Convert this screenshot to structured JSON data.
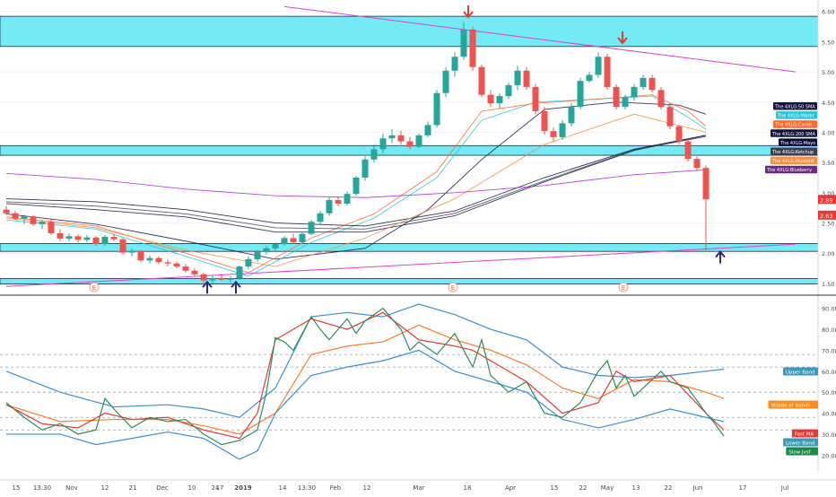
{
  "chart_data": [
    {
      "type": "candlestick",
      "panel": "price",
      "y_ticks": [
        1.5,
        2.0,
        2.5,
        3.0,
        3.5,
        4.0,
        4.5,
        5.0,
        5.5,
        6.0
      ],
      "y_tick_labels": [
        "1.50",
        "2.00",
        "2.50",
        "3.00",
        "3.50",
        "4.00",
        "4.50",
        "5.00",
        "5.50",
        "6.00"
      ],
      "ylim": [
        1.38,
        6.1
      ],
      "x_tick_labels": [
        "15",
        "13:30",
        "Nov",
        "12",
        "21",
        "Dec",
        "10",
        "17",
        "24",
        "2019",
        "14",
        "13:30",
        "Feb",
        "12",
        "Mar",
        "18",
        "Apr",
        "15",
        "22",
        "May",
        "13",
        "22",
        "Jun",
        "17",
        "Jul"
      ],
      "zones": [
        [
          5.42,
          5.92
        ],
        [
          3.62,
          3.78
        ],
        [
          2.03,
          2.16
        ],
        [
          1.49,
          1.58
        ]
      ],
      "series": [
        {
          "name": "The 4XLG:50 SMA",
          "color": "#13133f",
          "x": [
            0,
            10,
            20,
            30,
            40,
            47,
            53,
            60,
            68,
            75,
            78
          ],
          "y": [
            2.65,
            2.48,
            2.2,
            1.9,
            2.08,
            2.72,
            3.55,
            4.38,
            4.5,
            4.45,
            4.3
          ]
        },
        {
          "name": "The 4XLG:Water",
          "color": "#26c6da",
          "x": [
            0,
            10,
            20,
            27,
            34,
            41,
            48,
            53,
            59,
            66,
            72,
            76,
            78
          ],
          "y": [
            2.55,
            2.4,
            1.95,
            1.62,
            2.18,
            2.58,
            3.25,
            4.2,
            4.5,
            4.55,
            4.6,
            4.25,
            4.05
          ]
        },
        {
          "name": "The 4XLG:Carrot",
          "color": "#ff6a2b",
          "x": [
            0,
            10,
            20,
            27,
            34,
            41,
            48,
            53,
            59,
            66,
            72,
            76,
            78
          ],
          "y": [
            2.6,
            2.45,
            2.0,
            1.68,
            2.25,
            2.65,
            3.35,
            4.35,
            4.48,
            4.55,
            4.62,
            4.35,
            4.1
          ]
        },
        {
          "name": "The 4XLG:200 SMA",
          "color": "#13133f",
          "x": [
            0,
            10,
            20,
            30,
            40,
            50,
            60,
            70,
            78
          ],
          "y": [
            2.82,
            2.72,
            2.6,
            2.35,
            2.35,
            2.62,
            3.18,
            3.7,
            3.95
          ]
        },
        {
          "name": "The 4XLG:Mayo",
          "color": "#0b0b3a",
          "x": [
            0,
            10,
            20,
            30,
            40,
            50,
            60,
            70,
            78
          ],
          "y": [
            2.9,
            2.85,
            2.72,
            2.5,
            2.45,
            2.7,
            3.25,
            3.72,
            3.95
          ]
        },
        {
          "name": "The 4XLG:Ketchup",
          "color": "#3a3f52",
          "x": [
            0,
            10,
            20,
            30,
            40,
            50,
            60,
            70,
            78
          ],
          "y": [
            2.85,
            2.78,
            2.65,
            2.42,
            2.4,
            2.66,
            3.2,
            3.71,
            3.93
          ]
        },
        {
          "name": "The 4XLG:Mustard",
          "color": "#ff8c3a",
          "x": [
            0,
            10,
            20,
            30,
            40,
            50,
            60,
            70,
            78
          ],
          "y": [
            2.58,
            2.42,
            2.05,
            1.78,
            2.25,
            2.9,
            3.8,
            4.3,
            4.0
          ]
        },
        {
          "name": "The 4XLG:Blueberry",
          "color": "#a32ad8",
          "x": [
            0,
            10,
            20,
            30,
            40,
            50,
            60,
            70,
            78
          ],
          "y": [
            3.32,
            3.22,
            3.06,
            2.95,
            2.92,
            3.0,
            3.12,
            3.3,
            3.38
          ]
        }
      ],
      "trendlines": [
        {
          "color": "#e040c8",
          "x": [
            0,
            88
          ],
          "y": [
            1.45,
            2.15
          ]
        },
        {
          "color": "#e040c8",
          "x": [
            31,
            88
          ],
          "y": [
            6.08,
            5.0
          ]
        }
      ],
      "price_labels": [
        {
          "value": 2.89,
          "label": "2.89",
          "color": "#e53935"
        },
        {
          "value": 2.63,
          "label": "2.63",
          "color": "#e53935"
        }
      ],
      "annotations": [
        {
          "x": 51.5,
          "y": 5.98,
          "type": "arrow-down",
          "color": "#e53935"
        },
        {
          "x": 68.7,
          "y": 5.55,
          "type": "arrow-down",
          "color": "#e53935"
        },
        {
          "x": 22.4,
          "y": 1.45,
          "type": "arrow-up",
          "color": "#2b2b7a"
        },
        {
          "x": 25.6,
          "y": 1.45,
          "type": "arrow-up",
          "color": "#2b2b7a"
        },
        {
          "x": 79.6,
          "y": 1.95,
          "type": "arrow-up",
          "color": "#2b2b7a"
        }
      ],
      "earnings_markers": [
        {
          "x": 9.8,
          "label": "E"
        },
        {
          "x": 49.8,
          "label": "E"
        },
        {
          "x": 68.8,
          "label": "E"
        }
      ],
      "candles": [
        [
          2.72,
          2.78,
          2.63,
          2.66
        ],
        [
          2.66,
          2.7,
          2.55,
          2.57
        ],
        [
          2.57,
          2.64,
          2.48,
          2.61
        ],
        [
          2.61,
          2.63,
          2.45,
          2.48
        ],
        [
          2.48,
          2.55,
          2.4,
          2.52
        ],
        [
          2.52,
          2.56,
          2.3,
          2.33
        ],
        [
          2.33,
          2.4,
          2.2,
          2.24
        ],
        [
          2.24,
          2.33,
          2.2,
          2.28
        ],
        [
          2.28,
          2.31,
          2.18,
          2.22
        ],
        [
          2.22,
          2.3,
          2.18,
          2.26
        ],
        [
          2.26,
          2.28,
          2.12,
          2.15
        ],
        [
          2.15,
          2.3,
          2.12,
          2.27
        ],
        [
          2.27,
          2.32,
          2.2,
          2.23
        ],
        [
          2.23,
          2.25,
          1.98,
          2.01
        ],
        [
          2.01,
          2.08,
          1.95,
          2.04
        ],
        [
          2.04,
          2.05,
          1.85,
          1.88
        ],
        [
          1.88,
          1.96,
          1.83,
          1.92
        ],
        [
          1.92,
          1.95,
          1.82,
          1.85
        ],
        [
          1.85,
          1.9,
          1.78,
          1.83
        ],
        [
          1.83,
          1.86,
          1.75,
          1.78
        ],
        [
          1.78,
          1.82,
          1.68,
          1.71
        ],
        [
          1.71,
          1.75,
          1.62,
          1.65
        ],
        [
          1.65,
          1.68,
          1.52,
          1.55
        ],
        [
          1.55,
          1.63,
          1.51,
          1.59
        ],
        [
          1.59,
          1.66,
          1.54,
          1.56
        ],
        [
          1.56,
          1.62,
          1.51,
          1.58
        ],
        [
          1.58,
          1.8,
          1.56,
          1.78
        ],
        [
          1.78,
          1.95,
          1.74,
          1.9
        ],
        [
          1.9,
          2.05,
          1.86,
          2.02
        ],
        [
          2.02,
          2.12,
          1.98,
          2.08
        ],
        [
          2.08,
          2.18,
          2.03,
          2.15
        ],
        [
          2.15,
          2.28,
          2.12,
          2.25
        ],
        [
          2.25,
          2.32,
          2.16,
          2.18
        ],
        [
          2.18,
          2.35,
          2.15,
          2.32
        ],
        [
          2.32,
          2.55,
          2.3,
          2.52
        ],
        [
          2.52,
          2.7,
          2.48,
          2.66
        ],
        [
          2.66,
          2.92,
          2.62,
          2.88
        ],
        [
          2.88,
          2.94,
          2.78,
          2.82
        ],
        [
          2.82,
          3.02,
          2.79,
          2.98
        ],
        [
          2.98,
          3.28,
          2.95,
          3.25
        ],
        [
          3.25,
          3.6,
          3.2,
          3.55
        ],
        [
          3.55,
          3.8,
          3.5,
          3.72
        ],
        [
          3.72,
          3.98,
          3.65,
          3.9
        ],
        [
          3.9,
          4.05,
          3.82,
          3.95
        ],
        [
          3.95,
          4.02,
          3.8,
          3.85
        ],
        [
          3.85,
          3.92,
          3.72,
          3.76
        ],
        [
          3.76,
          3.98,
          3.74,
          3.95
        ],
        [
          3.95,
          4.18,
          3.92,
          4.12
        ],
        [
          4.12,
          4.7,
          4.08,
          4.65
        ],
        [
          4.65,
          5.08,
          4.58,
          5.02
        ],
        [
          5.02,
          5.32,
          4.92,
          5.25
        ],
        [
          5.25,
          5.82,
          5.2,
          5.7
        ],
        [
          5.7,
          5.75,
          5.02,
          5.08
        ],
        [
          5.08,
          5.12,
          4.58,
          4.62
        ],
        [
          4.62,
          4.7,
          4.42,
          4.48
        ],
        [
          4.48,
          4.65,
          4.4,
          4.6
        ],
        [
          4.6,
          4.82,
          4.55,
          4.78
        ],
        [
          4.78,
          5.1,
          4.7,
          5.02
        ],
        [
          5.02,
          5.08,
          4.7,
          4.75
        ],
        [
          4.75,
          4.8,
          4.3,
          4.35
        ],
        [
          4.35,
          4.42,
          3.96,
          4.02
        ],
        [
          4.02,
          4.08,
          3.85,
          3.92
        ],
        [
          3.92,
          4.2,
          3.88,
          4.15
        ],
        [
          4.15,
          4.48,
          4.1,
          4.42
        ],
        [
          4.42,
          4.9,
          4.38,
          4.85
        ],
        [
          4.85,
          5.0,
          4.82,
          4.95
        ],
        [
          4.95,
          5.32,
          4.9,
          5.25
        ],
        [
          5.25,
          5.3,
          4.7,
          4.75
        ],
        [
          4.75,
          4.8,
          4.38,
          4.42
        ],
        [
          4.42,
          4.62,
          4.38,
          4.58
        ],
        [
          4.58,
          4.8,
          4.52,
          4.75
        ],
        [
          4.75,
          4.95,
          4.7,
          4.9
        ],
        [
          4.9,
          4.95,
          4.66,
          4.7
        ],
        [
          4.7,
          4.75,
          4.38,
          4.42
        ],
        [
          4.42,
          4.48,
          4.05,
          4.1
        ],
        [
          4.1,
          4.12,
          3.8,
          3.85
        ],
        [
          3.85,
          3.88,
          3.52,
          3.56
        ],
        [
          3.56,
          3.6,
          3.36,
          3.41
        ],
        [
          3.41,
          3.45,
          2.05,
          2.89
        ]
      ]
    },
    {
      "type": "line",
      "panel": "oscillator",
      "y_ticks": [
        20,
        30,
        40,
        50,
        60,
        70,
        80,
        90
      ],
      "y_tick_labels": [
        "20.00",
        "30.00",
        "40.00",
        "50.00",
        "60.00",
        "70.00",
        "80.00",
        "90.00"
      ],
      "ylim": [
        12,
        95
      ],
      "reference_levels": [
        32,
        38,
        50,
        62,
        68
      ],
      "series": [
        {
          "name": "Upper Band",
          "color": "#3b8fd1",
          "label_color": "#3b9ab8",
          "x": [
            0,
            6,
            12,
            18,
            22,
            26,
            30,
            34,
            38,
            42,
            46,
            50,
            54,
            58,
            62,
            66,
            70,
            74,
            78,
            80
          ],
          "y": [
            60,
            50,
            43,
            44,
            42,
            38,
            52,
            86,
            88,
            86,
            92,
            87,
            80,
            75,
            62,
            58,
            57,
            58,
            60,
            61
          ]
        },
        {
          "name": "Middle of Bands",
          "color": "#ff7a2a",
          "label_color": "#ff8c1a",
          "x": [
            0,
            6,
            12,
            18,
            22,
            26,
            30,
            34,
            38,
            42,
            46,
            50,
            54,
            58,
            62,
            66,
            70,
            74,
            78,
            80
          ],
          "y": [
            44,
            36,
            37,
            37,
            34,
            30,
            40,
            68,
            72,
            74,
            82,
            75,
            70,
            63,
            52,
            47,
            56,
            55,
            50,
            47
          ]
        },
        {
          "name": "Fast MA",
          "color": "#e53935",
          "label_color": "#e53935",
          "x": [
            0,
            4,
            8,
            11,
            14,
            18,
            22,
            26,
            28,
            30,
            34,
            38,
            42,
            46,
            50,
            52,
            54,
            58,
            62,
            66,
            68,
            70,
            74,
            78,
            80
          ],
          "y": [
            44,
            35,
            33,
            40,
            37,
            38,
            32,
            28,
            40,
            75,
            85,
            80,
            88,
            75,
            72,
            70,
            65,
            55,
            40,
            45,
            60,
            55,
            58,
            40,
            32
          ]
        },
        {
          "name": "Lower Band",
          "color": "#3b8fd1",
          "label_color": "#3b9ab8",
          "x": [
            0,
            6,
            10,
            14,
            18,
            22,
            26,
            28,
            30,
            34,
            38,
            42,
            46,
            50,
            54,
            58,
            62,
            66,
            70,
            74,
            78,
            80
          ],
          "y": [
            30,
            30,
            25,
            28,
            31,
            28,
            18,
            22,
            40,
            58,
            62,
            65,
            70,
            60,
            55,
            50,
            37,
            33,
            37,
            42,
            38,
            36
          ]
        },
        {
          "name": "Slow Jvsf",
          "color": "#2e8b57",
          "label_color": "#1a8a4a",
          "x": [
            0,
            2,
            4,
            6,
            8,
            10,
            11,
            12,
            14,
            16,
            18,
            20,
            22,
            24,
            26,
            28,
            29,
            30,
            31,
            32,
            34,
            35,
            36,
            38,
            39,
            40,
            42,
            44,
            45,
            46,
            48,
            50,
            51,
            52,
            53,
            54,
            56,
            58,
            60,
            62,
            64,
            66,
            67,
            68,
            69,
            70,
            72,
            73,
            74,
            76,
            78,
            79,
            80
          ],
          "y": [
            45,
            38,
            32,
            35,
            30,
            32,
            47,
            42,
            33,
            38,
            36,
            37,
            30,
            25,
            27,
            32,
            50,
            76,
            74,
            70,
            86,
            80,
            75,
            85,
            78,
            84,
            90,
            80,
            70,
            74,
            68,
            78,
            70,
            62,
            75,
            58,
            50,
            55,
            40,
            38,
            45,
            60,
            65,
            52,
            58,
            48,
            56,
            60,
            55,
            52,
            40,
            35,
            29
          ]
        }
      ]
    }
  ]
}
